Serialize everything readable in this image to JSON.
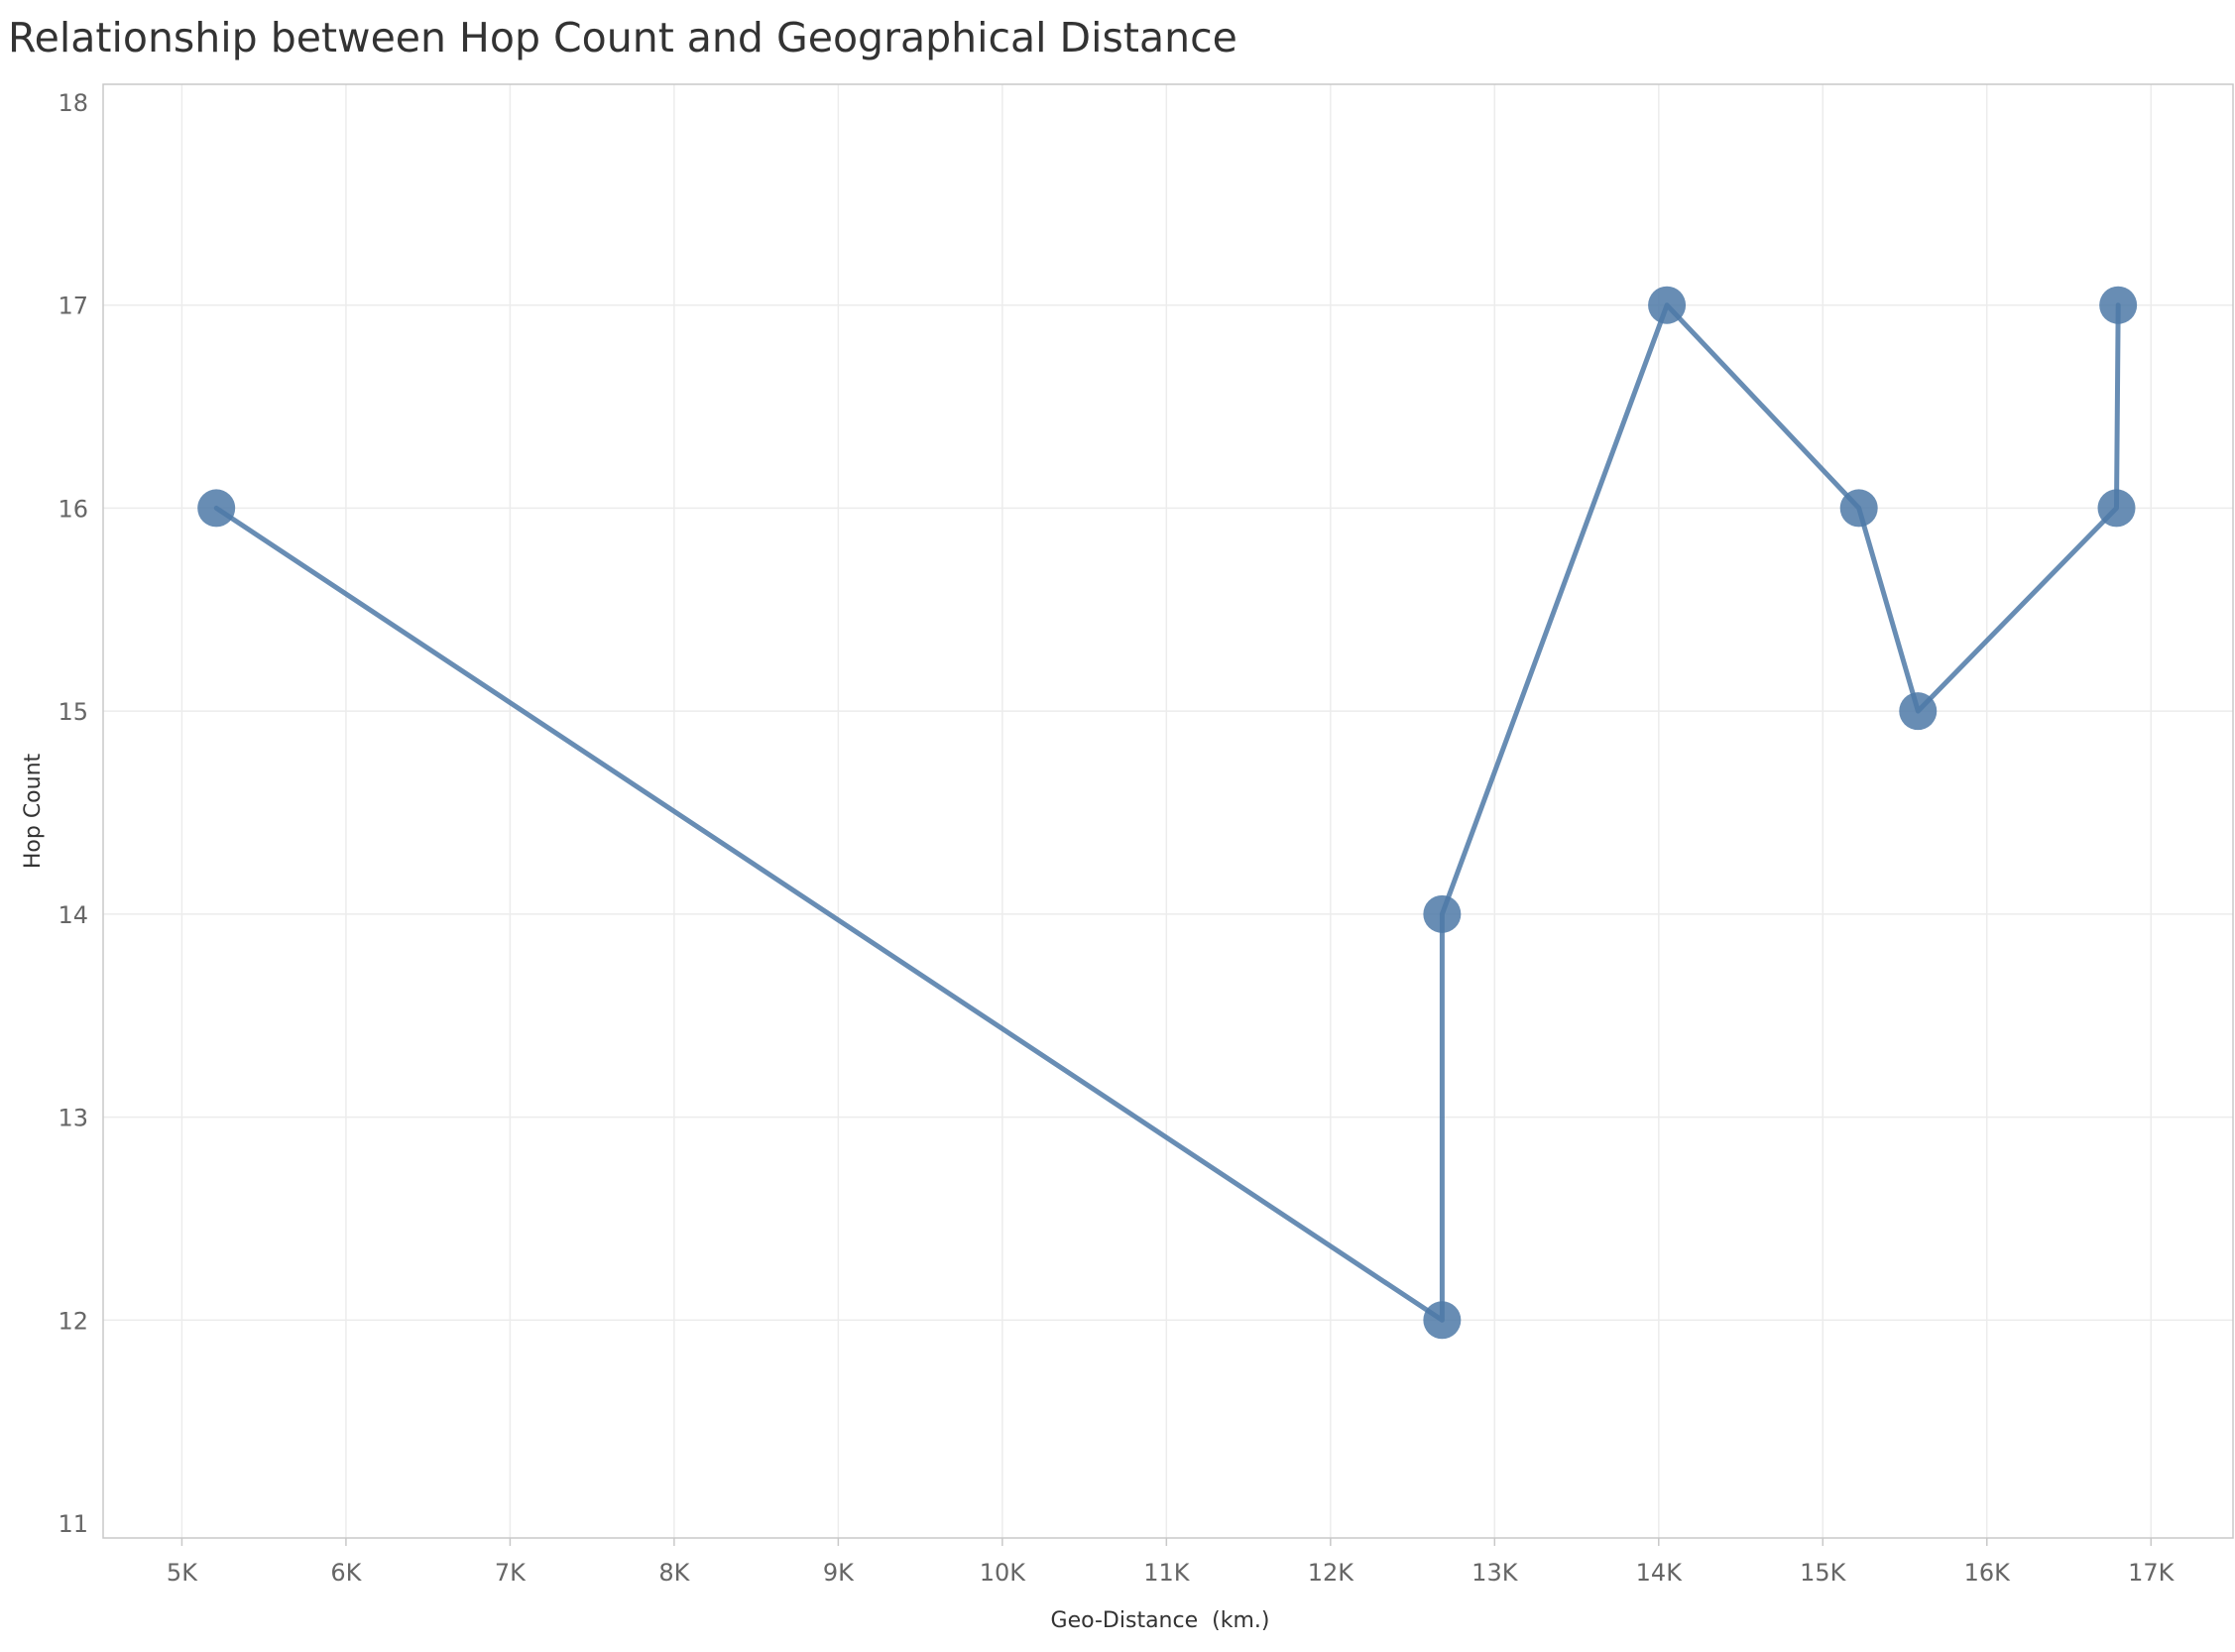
{
  "chart_data": {
    "type": "line",
    "title": "Relationship between Hop Count and Geographical Distance",
    "xlabel": "Geo-Distance  (km.)",
    "ylabel": "Hop Count",
    "xlim": [
      4520,
      17500
    ],
    "ylim": [
      11,
      18
    ],
    "x_ticks": [
      5000,
      6000,
      7000,
      8000,
      9000,
      10000,
      11000,
      12000,
      13000,
      14000,
      15000,
      16000,
      17000
    ],
    "x_tick_labels": [
      "5K",
      "6K",
      "7K",
      "8K",
      "9K",
      "10K",
      "11K",
      "12K",
      "13K",
      "14K",
      "15K",
      "16K",
      "17K"
    ],
    "y_ticks": [
      11,
      12,
      13,
      14,
      15,
      16,
      17,
      18
    ],
    "y_tick_labels": [
      "11",
      "12",
      "13",
      "14",
      "15",
      "16",
      "17",
      "18"
    ],
    "grid": true,
    "legend": "none",
    "color": "#4e79a7",
    "points": [
      {
        "x": 5210,
        "y": 16
      },
      {
        "x": 12680,
        "y": 12
      },
      {
        "x": 12680,
        "y": 14
      },
      {
        "x": 14050,
        "y": 17
      },
      {
        "x": 15220,
        "y": 16
      },
      {
        "x": 15580,
        "y": 15
      },
      {
        "x": 16790,
        "y": 16
      },
      {
        "x": 16800,
        "y": 17
      }
    ]
  }
}
